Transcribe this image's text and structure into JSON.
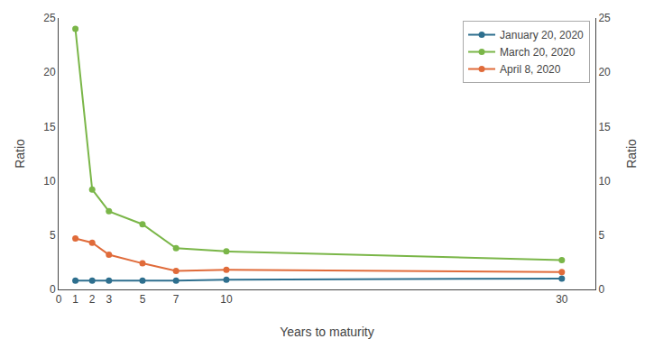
{
  "chart_data": {
    "type": "line",
    "xlabel": "Years to maturity",
    "ylabel": "Ratio",
    "y2label": "Ratio",
    "x": [
      1,
      2,
      3,
      5,
      7,
      10,
      30
    ],
    "series": [
      {
        "name": "January 20, 2020",
        "color": "#2e6f8e",
        "values": [
          0.8,
          0.8,
          0.8,
          0.8,
          0.8,
          0.9,
          1.0
        ]
      },
      {
        "name": "March 20, 2020",
        "color": "#7ab648",
        "values": [
          24.0,
          9.2,
          7.2,
          6.0,
          3.8,
          3.5,
          2.7
        ]
      },
      {
        "name": "April 8, 2020",
        "color": "#e06b3a",
        "values": [
          4.7,
          4.3,
          3.2,
          2.4,
          1.7,
          1.8,
          1.6
        ]
      }
    ],
    "xlim": [
      0,
      32
    ],
    "xticks": [
      0,
      1,
      2,
      3,
      5,
      7,
      10,
      30
    ],
    "ylim": [
      0,
      25
    ],
    "yticks": [
      0,
      5,
      10,
      15,
      20,
      25
    ],
    "y2lim": [
      0,
      25
    ],
    "y2ticks": [
      0,
      5,
      10,
      15,
      20,
      25
    ],
    "marker": "circle",
    "grid": false,
    "legend": "upper right"
  }
}
